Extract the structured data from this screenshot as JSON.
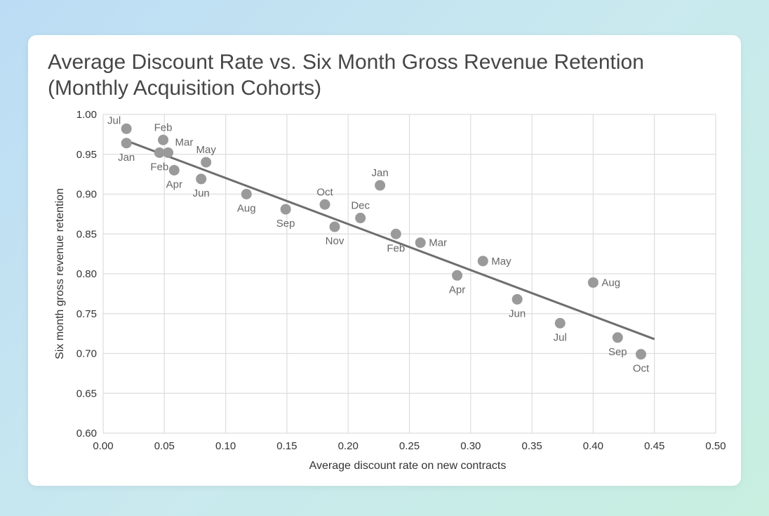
{
  "chart_data": {
    "type": "scatter",
    "title_line1": "Average Discount Rate vs. Six Month Gross Revenue Retention",
    "title_line2": "(Monthly Acquisition Cohorts)",
    "xlabel": "Average discount rate on new contracts",
    "ylabel": "Six month gross revenue retention",
    "xlim": [
      0,
      0.5
    ],
    "ylim": [
      0.6,
      1.0
    ],
    "xticks": [
      "0.00",
      "0.05",
      "0.10",
      "0.15",
      "0.20",
      "0.25",
      "0.30",
      "0.35",
      "0.40",
      "0.45",
      "0.50"
    ],
    "yticks": [
      "0.60",
      "0.65",
      "0.70",
      "0.75",
      "0.80",
      "0.85",
      "0.90",
      "0.95",
      "1.00"
    ],
    "grid": true,
    "point_color": "#9a9a9a",
    "trend_color": "#6e6e6e",
    "trendline": {
      "x": [
        0.019,
        0.45
      ],
      "y": [
        0.967,
        0.718
      ]
    },
    "points": [
      {
        "label": "Jul",
        "x": 0.019,
        "y": 0.982,
        "label_pos": "upper-left"
      },
      {
        "label": "Jan",
        "x": 0.019,
        "y": 0.964,
        "label_pos": "below"
      },
      {
        "label": "Feb",
        "x": 0.049,
        "y": 0.968,
        "label_pos": "above"
      },
      {
        "label": "Feb",
        "x": 0.046,
        "y": 0.952,
        "label_pos": "below"
      },
      {
        "label": "Mar",
        "x": 0.053,
        "y": 0.952,
        "label_pos": "upper-right"
      },
      {
        "label": "Apr",
        "x": 0.058,
        "y": 0.93,
        "label_pos": "below"
      },
      {
        "label": "May",
        "x": 0.084,
        "y": 0.94,
        "label_pos": "above"
      },
      {
        "label": "Jun",
        "x": 0.08,
        "y": 0.919,
        "label_pos": "below"
      },
      {
        "label": "Aug",
        "x": 0.117,
        "y": 0.9,
        "label_pos": "below"
      },
      {
        "label": "Sep",
        "x": 0.149,
        "y": 0.881,
        "label_pos": "below"
      },
      {
        "label": "Oct",
        "x": 0.181,
        "y": 0.887,
        "label_pos": "above"
      },
      {
        "label": "Nov",
        "x": 0.189,
        "y": 0.859,
        "label_pos": "below"
      },
      {
        "label": "Dec",
        "x": 0.21,
        "y": 0.87,
        "label_pos": "above"
      },
      {
        "label": "Jan",
        "x": 0.226,
        "y": 0.911,
        "label_pos": "above"
      },
      {
        "label": "Feb",
        "x": 0.239,
        "y": 0.85,
        "label_pos": "below"
      },
      {
        "label": "Mar",
        "x": 0.259,
        "y": 0.839,
        "label_pos": "right"
      },
      {
        "label": "Apr",
        "x": 0.289,
        "y": 0.798,
        "label_pos": "below"
      },
      {
        "label": "May",
        "x": 0.31,
        "y": 0.816,
        "label_pos": "right"
      },
      {
        "label": "Jun",
        "x": 0.338,
        "y": 0.768,
        "label_pos": "below"
      },
      {
        "label": "Jul",
        "x": 0.373,
        "y": 0.738,
        "label_pos": "below"
      },
      {
        "label": "Aug",
        "x": 0.4,
        "y": 0.789,
        "label_pos": "right"
      },
      {
        "label": "Sep",
        "x": 0.42,
        "y": 0.72,
        "label_pos": "below"
      },
      {
        "label": "Oct",
        "x": 0.439,
        "y": 0.699,
        "label_pos": "below"
      }
    ]
  }
}
